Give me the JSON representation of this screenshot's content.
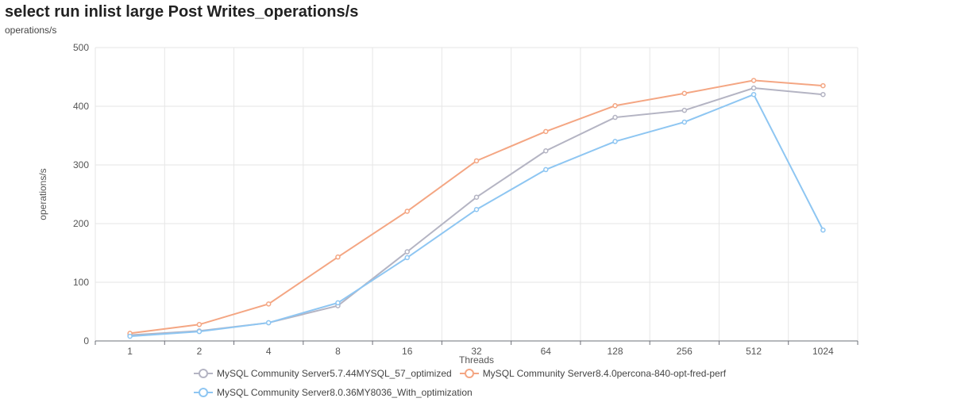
{
  "header": {
    "title": "select run inlist large Post Writes_operations/s",
    "subtitle": "operations/s"
  },
  "chart_data": {
    "type": "line",
    "title": "select run inlist large Post Writes_operations/s",
    "subtitle": "operations/s",
    "xlabel": "Threads",
    "ylabel": "operations/s",
    "categories": [
      "1",
      "2",
      "4",
      "8",
      "16",
      "32",
      "64",
      "128",
      "256",
      "512",
      "1024"
    ],
    "ylim": [
      0,
      500
    ],
    "yticks": [
      0,
      100,
      200,
      300,
      400,
      500
    ],
    "grid": true,
    "legend_position": "bottom",
    "series": [
      {
        "name": "MySQL Community Server5.7.44MYSQL_57_optimized",
        "color": "#b4b4c3",
        "values": [
          10,
          17,
          31,
          60,
          152,
          245,
          324,
          381,
          393,
          431,
          420
        ]
      },
      {
        "name": "MySQL Community Server8.4.0percona-840-opt-fred-perf",
        "color": "#f4a683",
        "values": [
          13,
          28,
          63,
          143,
          221,
          307,
          357,
          401,
          422,
          444,
          435
        ]
      },
      {
        "name": "MySQL Community Server8.0.36MY8036_With_optimization",
        "color": "#8ec6f2",
        "values": [
          8,
          16,
          31,
          65,
          142,
          224,
          292,
          340,
          373,
          420,
          189
        ]
      }
    ]
  }
}
